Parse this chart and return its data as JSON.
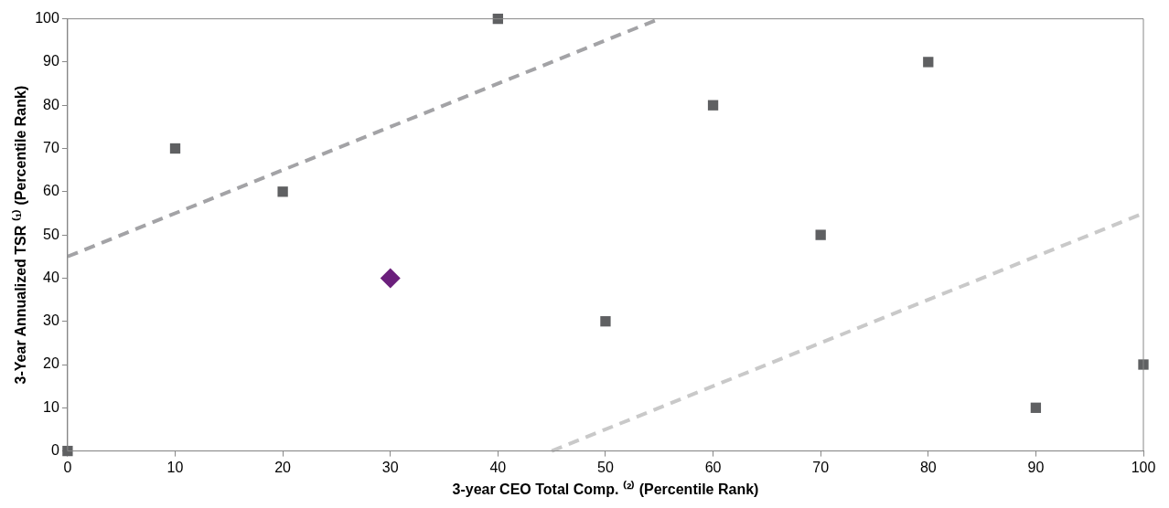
{
  "chart_data": {
    "type": "scatter",
    "xlabel": "3-year CEO Total Comp. ⁽²⁾ (Percentile Rank)",
    "ylabel": "3-Year Annualized TSR ⁽¹⁾ (Percentile Rank)",
    "xlim": [
      0,
      100
    ],
    "xticks": [
      0,
      10,
      20,
      30,
      40,
      50,
      60,
      70,
      80,
      90,
      100
    ],
    "ylim": [
      0,
      100
    ],
    "yticks": [
      0,
      10,
      20,
      30,
      40,
      50,
      60,
      70,
      80,
      90,
      100
    ],
    "grid": false,
    "legend": false,
    "series": [
      {
        "type": "line",
        "color": "#a3a3a6",
        "line_style": "dashed",
        "marker": "none",
        "x": [
          0,
          55
        ],
        "values": [
          45,
          100
        ]
      },
      {
        "type": "line",
        "color": "#c9c9c9",
        "line_style": "dashed",
        "marker": "none",
        "x": [
          45,
          100
        ],
        "values": [
          0,
          55
        ]
      },
      {
        "type": "scatter",
        "color": "#5f6062",
        "marker": "square",
        "x": [
          0,
          10,
          20,
          40,
          50,
          60,
          70,
          80,
          90,
          100
        ],
        "values": [
          0,
          70,
          60,
          100,
          30,
          80,
          50,
          90,
          10,
          20
        ]
      },
      {
        "type": "scatter",
        "color": "#6b1f7c",
        "marker": "diamond",
        "x": [
          30
        ],
        "values": [
          40
        ]
      }
    ]
  }
}
